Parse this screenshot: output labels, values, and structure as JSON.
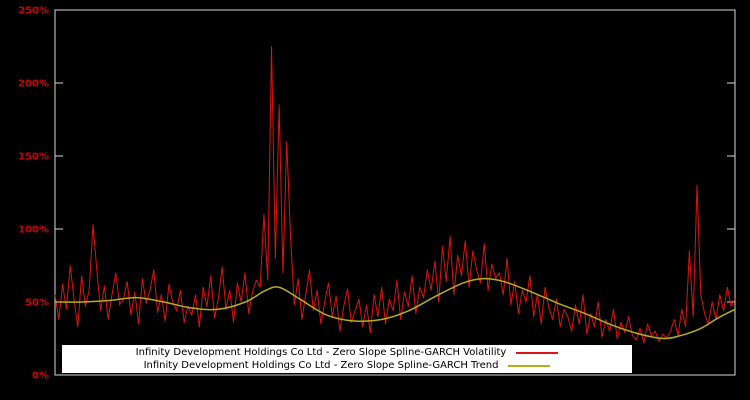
{
  "page": {
    "background": "#000000"
  },
  "chart_data": {
    "type": "line",
    "title": "",
    "xlabel": "",
    "ylabel": "",
    "ylim": [
      0,
      250
    ],
    "x_range": [
      0,
      1
    ],
    "grid": false,
    "legend_position": "bottom-center",
    "frame_color": "#d8d8d8",
    "axis_label_color": "#cc0000",
    "y_ticks": [
      {
        "value": 0,
        "label": "0%"
      },
      {
        "value": 50,
        "label": "50%"
      },
      {
        "value": 100,
        "label": "100%"
      },
      {
        "value": 150,
        "label": "150%"
      },
      {
        "value": 200,
        "label": "200%"
      },
      {
        "value": 250,
        "label": "250%"
      }
    ],
    "series": [
      {
        "name": "Infinity Development Holdings Co Ltd - Zero Slope Spline-GARCH Volatility",
        "color": "#dc1414",
        "style": "jagged",
        "values": [
          55,
          38,
          62,
          45,
          75,
          52,
          33,
          68,
          47,
          58,
          103,
          72,
          44,
          61,
          38,
          55,
          70,
          48,
          52,
          64,
          41,
          57,
          35,
          66,
          49,
          58,
          72,
          43,
          55,
          37,
          62,
          50,
          44,
          58,
          36,
          47,
          41,
          55,
          33,
          60,
          47,
          68,
          39,
          52,
          74,
          45,
          58,
          36,
          63,
          50,
          70,
          42,
          57,
          65,
          60,
          110,
          65,
          225,
          80,
          185,
          70,
          160,
          95,
          48,
          66,
          38,
          55,
          72,
          44,
          58,
          35,
          50,
          63,
          40,
          54,
          30,
          47,
          59,
          36,
          44,
          52,
          33,
          48,
          29,
          55,
          40,
          60,
          35,
          52,
          44,
          65,
          38,
          57,
          47,
          68,
          42,
          60,
          53,
          72,
          58,
          78,
          50,
          88,
          64,
          95,
          55,
          82,
          68,
          92,
          60,
          85,
          72,
          63,
          90,
          58,
          76,
          66,
          70,
          55,
          80,
          48,
          64,
          42,
          58,
          50,
          68,
          40,
          55,
          35,
          60,
          46,
          38,
          52,
          33,
          45,
          40,
          30,
          48,
          35,
          55,
          28,
          42,
          33,
          50,
          26,
          38,
          30,
          45,
          25,
          36,
          29,
          40,
          27,
          24,
          32,
          22,
          35,
          27,
          30,
          23,
          28,
          25,
          30,
          38,
          27,
          45,
          33,
          85,
          40,
          130,
          55,
          42,
          35,
          50,
          38,
          55,
          44,
          60,
          47,
          52
        ]
      },
      {
        "name": "Infinity Development Holdings Co Ltd - Zero Slope Spline-GARCH Trend",
        "color": "#b8ad18",
        "style": "smooth",
        "control_points": [
          [
            0.0,
            50
          ],
          [
            0.04,
            50
          ],
          [
            0.08,
            51
          ],
          [
            0.12,
            53
          ],
          [
            0.16,
            50
          ],
          [
            0.2,
            46
          ],
          [
            0.24,
            45
          ],
          [
            0.28,
            50
          ],
          [
            0.31,
            58
          ],
          [
            0.33,
            60
          ],
          [
            0.36,
            52
          ],
          [
            0.4,
            41
          ],
          [
            0.44,
            37
          ],
          [
            0.48,
            38
          ],
          [
            0.52,
            44
          ],
          [
            0.56,
            54
          ],
          [
            0.6,
            63
          ],
          [
            0.63,
            66
          ],
          [
            0.66,
            64
          ],
          [
            0.7,
            57
          ],
          [
            0.74,
            49
          ],
          [
            0.78,
            42
          ],
          [
            0.82,
            34
          ],
          [
            0.86,
            28
          ],
          [
            0.895,
            25
          ],
          [
            0.92,
            27
          ],
          [
            0.95,
            32
          ],
          [
            0.975,
            39
          ],
          [
            1.0,
            45
          ]
        ]
      }
    ]
  }
}
